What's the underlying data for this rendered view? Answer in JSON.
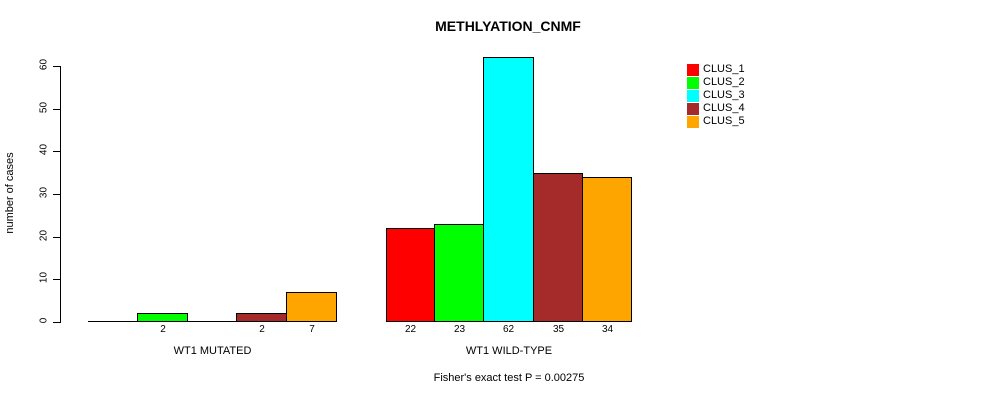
{
  "figure": {
    "title": "METHLYATION_CNMF",
    "annotation": "Fisher's exact test P = 0.00275",
    "background_color": "#ffffff",
    "axis_color": "#000000"
  },
  "chart_data": {
    "type": "bar",
    "title": "METHLYATION_CNMF",
    "xlabel": "",
    "ylabel": "number of cases",
    "ylim": [
      0,
      62
    ],
    "yticks": [
      0,
      10,
      20,
      30,
      40,
      50,
      60
    ],
    "grid": false,
    "legend_position": "top-right",
    "categories": [
      "WT1 MUTATED",
      "WT1 WILD-TYPE"
    ],
    "series": [
      {
        "name": "CLUS_1",
        "color": "#FF0000",
        "values": [
          0,
          22
        ]
      },
      {
        "name": "CLUS_2",
        "color": "#00FF00",
        "values": [
          2,
          23
        ]
      },
      {
        "name": "CLUS_3",
        "color": "#00FFFF",
        "values": [
          0,
          62
        ]
      },
      {
        "name": "CLUS_4",
        "color": "#A52A2A",
        "values": [
          2,
          35
        ]
      },
      {
        "name": "CLUS_5",
        "color": "#FFA500",
        "values": [
          7,
          34
        ]
      }
    ],
    "bar_value_labels": [
      [
        "",
        "2",
        "",
        "2",
        "7"
      ],
      [
        "22",
        "23",
        "62",
        "35",
        "34"
      ]
    ],
    "annotation": "Fisher's exact test P = 0.00275"
  }
}
